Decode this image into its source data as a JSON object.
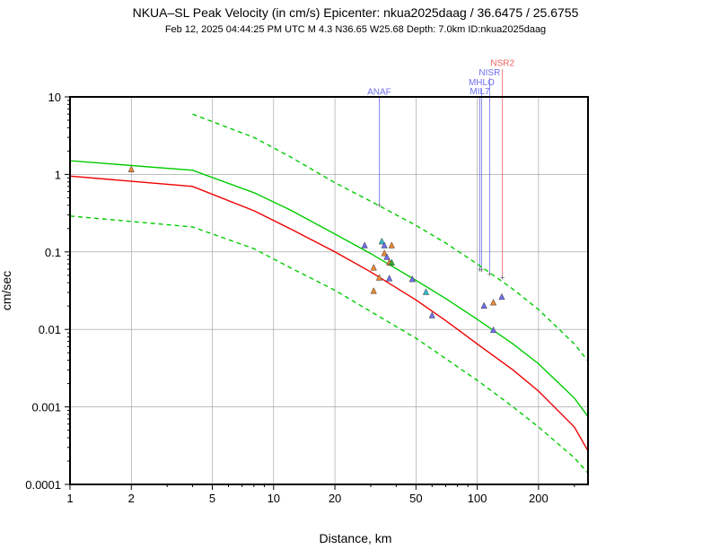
{
  "chart_data": {
    "type": "scatter",
    "title": "NKUA–SL Peak Velocity (in cm/s) Epicenter: nkua2025daag / 36.6475 / 25.6755",
    "subtitle": "Feb 12, 2025 04:44:25 PM UTC   M 4.3   N36.65 W25.68   Depth: 7.0km   ID:nkua2025daag",
    "xlabel": "Distance, km",
    "ylabel": "cm/sec",
    "xscale": "log",
    "yscale": "log",
    "xlim": [
      1,
      350
    ],
    "ylim": [
      0.0001,
      10
    ],
    "xticks": [
      {
        "v": 1,
        "label": "1"
      },
      {
        "v": 2,
        "label": "2"
      },
      {
        "v": 5,
        "label": "5"
      },
      {
        "v": 10,
        "label": "10"
      },
      {
        "v": 20,
        "label": "20"
      },
      {
        "v": 50,
        "label": "50"
      },
      {
        "v": 100,
        "label": "100"
      },
      {
        "v": 200,
        "label": "200"
      }
    ],
    "yticks": [
      {
        "v": 0.0001,
        "label": "0.0001"
      },
      {
        "v": 0.001,
        "label": "0.001"
      },
      {
        "v": 0.01,
        "label": "0.01"
      },
      {
        "v": 0.1,
        "label": "0.1"
      },
      {
        "v": 1,
        "label": "1"
      },
      {
        "v": 10,
        "label": "10"
      }
    ],
    "x_gridlines": [
      1,
      2,
      5,
      10,
      20,
      50,
      100,
      200
    ],
    "grid": true,
    "colors": {
      "green": "#00cc00",
      "red": "#ee0000",
      "blue_station": "#7070ee",
      "red_station": "#ee6060",
      "grid": "#999999"
    },
    "curves": [
      {
        "style": "solid",
        "color": "#00cc00",
        "x": [
          1,
          4,
          8,
          12,
          20,
          30,
          50,
          70,
          100,
          150,
          200,
          300,
          350
        ],
        "y": [
          1.5,
          1.13,
          0.58,
          0.35,
          0.17,
          0.095,
          0.043,
          0.025,
          0.0135,
          0.0065,
          0.0036,
          0.0013,
          0.00075
        ]
      },
      {
        "style": "solid",
        "color": "#ee0000",
        "x": [
          1,
          4,
          8,
          12,
          20,
          30,
          50,
          70,
          100,
          150,
          200,
          300,
          350
        ],
        "y": [
          0.95,
          0.7,
          0.34,
          0.2,
          0.1,
          0.055,
          0.024,
          0.013,
          0.0065,
          0.003,
          0.0016,
          0.00055,
          0.00027
        ]
      },
      {
        "style": "dashed",
        "color": "#00cc00",
        "x": [
          4,
          8,
          12,
          20,
          30,
          50,
          70,
          100,
          150,
          200,
          300,
          350
        ],
        "y": [
          6.0,
          3.0,
          1.7,
          0.78,
          0.45,
          0.22,
          0.13,
          0.07,
          0.033,
          0.018,
          0.0065,
          0.0039
        ]
      },
      {
        "style": "dashed",
        "color": "#00cc00",
        "x": [
          1,
          4,
          8,
          12,
          20,
          30,
          50,
          70,
          100,
          150,
          200,
          300,
          350
        ],
        "y": [
          0.29,
          0.21,
          0.11,
          0.063,
          0.032,
          0.017,
          0.0077,
          0.0042,
          0.0022,
          0.001,
          0.00055,
          0.00022,
          0.00014
        ]
      }
    ],
    "points": [
      {
        "x": 2,
        "y": 1.15,
        "fill": "#ee8833"
      },
      {
        "x": 28,
        "y": 0.12,
        "fill": "#7070ee"
      },
      {
        "x": 34,
        "y": 0.135,
        "fill": "#33bbcc"
      },
      {
        "x": 35,
        "y": 0.12,
        "fill": "#7070ee"
      },
      {
        "x": 38,
        "y": 0.12,
        "fill": "#ee8833"
      },
      {
        "x": 35,
        "y": 0.095,
        "fill": "#ee8833"
      },
      {
        "x": 36,
        "y": 0.085,
        "fill": "#7070ee"
      },
      {
        "x": 37,
        "y": 0.072,
        "fill": "#ee8833"
      },
      {
        "x": 38,
        "y": 0.072,
        "fill": "#33aa33"
      },
      {
        "x": 31,
        "y": 0.062,
        "fill": "#ee8833"
      },
      {
        "x": 33,
        "y": 0.046,
        "fill": "#ee8833"
      },
      {
        "x": 37,
        "y": 0.045,
        "fill": "#7070ee"
      },
      {
        "x": 48,
        "y": 0.044,
        "fill": "#7070ee"
      },
      {
        "x": 56,
        "y": 0.03,
        "fill": "#33bbcc"
      },
      {
        "x": 31,
        "y": 0.031,
        "fill": "#ee8833"
      },
      {
        "x": 60,
        "y": 0.015,
        "fill": "#7070ee"
      },
      {
        "x": 108,
        "y": 0.02,
        "fill": "#7070ee"
      },
      {
        "x": 120,
        "y": 0.022,
        "fill": "#ee8833"
      },
      {
        "x": 132,
        "y": 0.026,
        "fill": "#7070ee"
      },
      {
        "x": 120,
        "y": 0.0097,
        "fill": "#7070ee"
      }
    ],
    "stations": [
      {
        "name": "ANAF",
        "x": 33,
        "y": 0.41,
        "color": "#7070ee",
        "label_y": 10.7
      },
      {
        "name": "MIL7",
        "x": 103,
        "y": 0.06,
        "color": "#7070ee",
        "label_y": 10.9
      },
      {
        "name": "MHLO",
        "x": 105,
        "y": 0.06,
        "color": "#7070ee",
        "label_y": 14.2
      },
      {
        "name": "NISR",
        "x": 115,
        "y": 0.053,
        "color": "#7070ee",
        "label_y": 19.0
      },
      {
        "name": "NSR2",
        "x": 133,
        "y": 0.048,
        "color": "#ee6060",
        "label_y": 25.0
      }
    ]
  }
}
